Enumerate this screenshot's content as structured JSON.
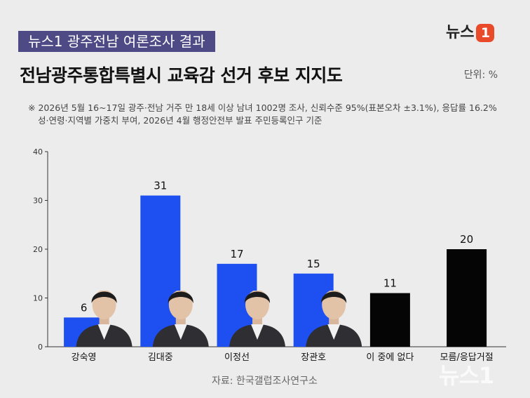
{
  "header": {
    "banner": "뉴스1 광주전남 여론조사 결과",
    "title": "전남광주통합특별시 교육감 선거 후보 지지도",
    "unit": "단위: %",
    "logo_text": "뉴스",
    "logo_number": "1"
  },
  "note": {
    "line1": "※ 2026년 5월 16~17일 광주·전남 거주 만 18세 이상 남녀 1002명 조사, 신뢰수준 95%(표본오차 ±3.1%), 응답률 16.2%",
    "line2": "성·연령·지역별 가중치 부여, 2026년 4월 행정안전부 발표 주민등록인구 기준"
  },
  "footer": {
    "source": "자료: 한국갤럽조사연구소",
    "watermark": "뉴스1"
  },
  "colors": {
    "candidate_bar": "#1e4ff0",
    "other_bar": "#050505",
    "banner": "#4d4a86"
  },
  "chart_data": {
    "type": "bar",
    "categories": [
      "강숙영",
      "김대중",
      "이정선",
      "장관호",
      "이 중에 없다",
      "모름/응답거절"
    ],
    "values": [
      6,
      31,
      17,
      15,
      11,
      20
    ],
    "bar_colors": [
      "#1e4ff0",
      "#1e4ff0",
      "#1e4ff0",
      "#1e4ff0",
      "#050505",
      "#050505"
    ],
    "has_photo": [
      true,
      true,
      true,
      true,
      false,
      false
    ],
    "ylim": [
      0,
      40
    ],
    "yticks": [
      0,
      10,
      20,
      30,
      40
    ],
    "grid": false,
    "xlabel": "",
    "ylabel": ""
  }
}
